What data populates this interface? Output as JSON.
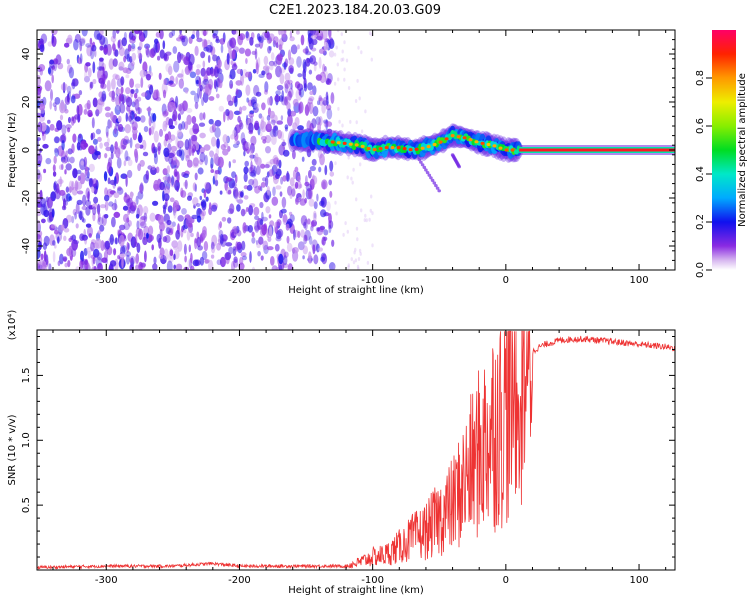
{
  "title": "C2E1.2023.184.20.03.G09",
  "chart_data": [
    {
      "type": "heatmap",
      "xlabel": "Height of straight line (km)",
      "ylabel": "Frequency (Hz)",
      "xlim": [
        -352,
        127
      ],
      "ylim": [
        -50,
        50
      ],
      "x_ticks": [
        -300,
        -200,
        -100,
        0,
        100
      ],
      "x_tick_labels": [
        "-300",
        "-200",
        "-100",
        "0",
        "100"
      ],
      "y_ticks": [
        -40,
        -20,
        0,
        20,
        40
      ],
      "y_tick_labels": [
        "-40",
        "-20",
        "0",
        "20",
        "40"
      ],
      "colorbar": {
        "label": "Normalized spectral amplitude",
        "range": [
          0,
          1
        ],
        "ticks": [
          0.0,
          0.2,
          0.4,
          0.6,
          0.8
        ],
        "tick_labels": [
          "0.0",
          "0.2",
          "0.4",
          "0.6",
          "0.8"
        ],
        "colormap": "rainbow"
      },
      "regions": [
        {
          "x_range": [
            -352,
            -130
          ],
          "freq_range": [
            -50,
            50
          ],
          "amplitude": "0.05-0.25 (noise)"
        },
        {
          "x_range": [
            -160,
            10
          ],
          "freq_range": [
            -5,
            8
          ],
          "amplitude": "0.3-0.9 (signal)"
        },
        {
          "x_range": [
            10,
            127
          ],
          "freq_range": [
            -0.5,
            0.5
          ],
          "amplitude": "0.8-1.0 (signal)"
        }
      ],
      "ridge": [
        [
          -160,
          4
        ],
        [
          -140,
          4
        ],
        [
          -125,
          3
        ],
        [
          -110,
          2
        ],
        [
          -100,
          0
        ],
        [
          -90,
          1
        ],
        [
          -80,
          1
        ],
        [
          -70,
          0
        ],
        [
          -60,
          1
        ],
        [
          -50,
          3
        ],
        [
          -40,
          6
        ],
        [
          -30,
          5
        ],
        [
          -20,
          3
        ],
        [
          -10,
          2
        ],
        [
          0,
          0
        ],
        [
          10,
          0
        ],
        [
          127,
          0
        ]
      ]
    },
    {
      "type": "line",
      "xlabel": "Height of straight line (km)",
      "ylabel": "SNR (10 * v/v)",
      "y_multiplier_label": "(x10⁴)",
      "xlim": [
        -352,
        127
      ],
      "ylim": [
        0,
        1.85
      ],
      "x_ticks": [
        -300,
        -200,
        -100,
        0,
        100
      ],
      "x_tick_labels": [
        "-300",
        "-200",
        "-100",
        "0",
        "100"
      ],
      "y_ticks": [
        0.5,
        1.0,
        1.5
      ],
      "y_tick_labels": [
        "0.5",
        "1.0",
        "1.5"
      ],
      "series": [
        {
          "color": "#ee3333",
          "x": [
            -352,
            -300,
            -250,
            -220,
            -200,
            -150,
            -120,
            -110,
            -100,
            -90,
            -80,
            -70,
            -60,
            -50,
            -40,
            -30,
            -20,
            -10,
            0,
            5,
            10,
            15,
            20,
            25,
            30,
            40,
            50,
            60,
            70,
            80,
            90,
            100,
            110,
            120,
            127
          ],
          "y": [
            0.02,
            0.03,
            0.03,
            0.05,
            0.03,
            0.03,
            0.03,
            0.06,
            0.1,
            0.12,
            0.18,
            0.25,
            0.3,
            0.4,
            0.5,
            0.7,
            0.9,
            1.1,
            1.25,
            1.35,
            1.5,
            1.6,
            1.68,
            1.72,
            1.74,
            1.77,
            1.78,
            1.78,
            1.77,
            1.76,
            1.75,
            1.74,
            1.73,
            1.72,
            1.71
          ]
        }
      ]
    }
  ]
}
